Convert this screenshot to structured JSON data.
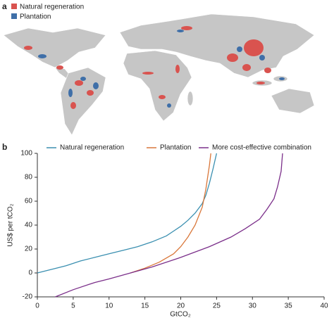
{
  "panel_a": {
    "label": "a",
    "legend": [
      {
        "name": "Natural regeneration",
        "color": "#d9534f"
      },
      {
        "name": "Plantation",
        "color": "#3f6fa8"
      }
    ]
  },
  "chart_data": {
    "type": "line",
    "label": "b",
    "xlabel": "GtCO₂",
    "ylabel": "US$ per tCO₂",
    "xlim": [
      0,
      40
    ],
    "xticks": [
      0,
      5,
      10,
      15,
      20,
      25,
      30,
      35,
      40
    ],
    "ylim": [
      -20,
      100
    ],
    "yticks": [
      -20,
      0,
      20,
      40,
      60,
      80,
      100
    ],
    "series": [
      {
        "name": "Natural regeneration",
        "color": "#3a8fb0",
        "x": [
          0,
          2,
          4,
          6,
          8,
          10,
          12,
          14,
          16,
          18,
          19,
          20,
          21,
          22,
          23,
          23.5,
          24,
          24.5,
          25
        ],
        "values": [
          0,
          3,
          6,
          10,
          13,
          16,
          19,
          22,
          26,
          31,
          35,
          39,
          44,
          50,
          58,
          65,
          75,
          87,
          100
        ]
      },
      {
        "name": "Plantation",
        "color": "#d9773a",
        "x": [
          13,
          15,
          17,
          19,
          20,
          21,
          22,
          23,
          23.5,
          24,
          24.2
        ],
        "values": [
          0,
          4,
          9,
          16,
          22,
          30,
          40,
          55,
          70,
          90,
          100
        ]
      },
      {
        "name": "More cost-effective combination",
        "color": "#7b2f8a",
        "x": [
          2.5,
          5,
          8,
          10,
          13,
          16,
          20,
          24,
          27,
          29,
          31,
          32,
          33,
          33.5,
          34,
          34.2
        ],
        "values": [
          -20,
          -14,
          -8,
          -5,
          0,
          5,
          13,
          22,
          30,
          37,
          45,
          53,
          62,
          72,
          85,
          100
        ]
      }
    ]
  }
}
